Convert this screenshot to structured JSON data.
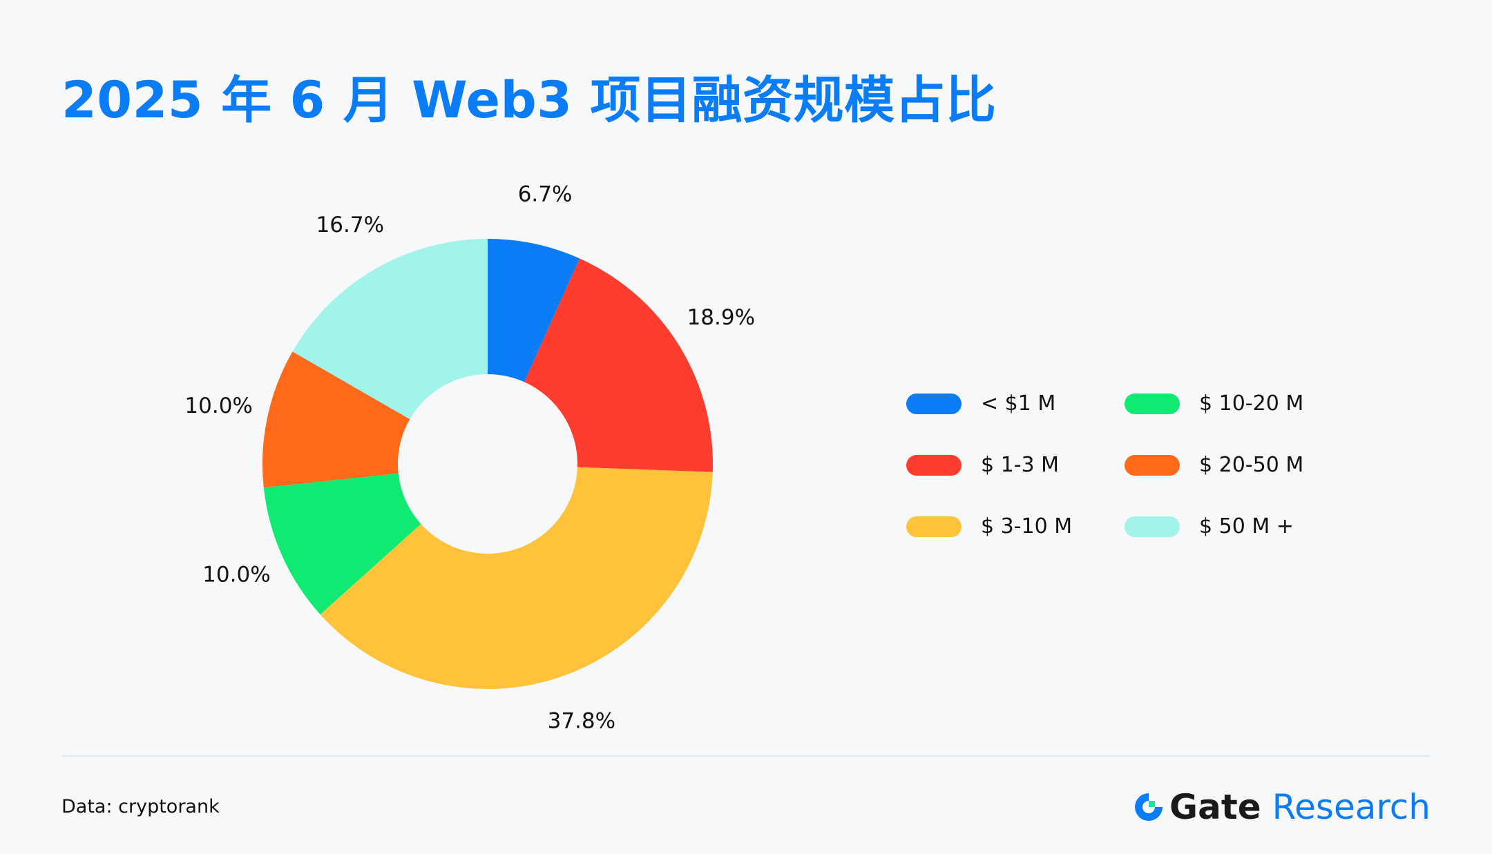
{
  "title": "2025 年 6 月 Web3 项目融资规模占比",
  "chart_data": {
    "type": "pie",
    "variant": "donut",
    "title": "2025 年 6 月 Web3 项目融资规模占比",
    "categories": [
      "< $1 M",
      "$ 1-3 M",
      "$ 3-10 M",
      "$ 10-20 M",
      "$ 20-50 M",
      "$ 50 M +"
    ],
    "values": [
      6.7,
      18.9,
      37.8,
      10.0,
      10.0,
      16.7
    ],
    "value_labels": [
      "6.7%",
      "18.9%",
      "37.8%",
      "10.0%",
      "10.0%",
      "16.7%"
    ],
    "colors": [
      "#0a7cf5",
      "#ff3d2e",
      "#fec33a",
      "#11ea72",
      "#ff6a1a",
      "#a1f4ea"
    ],
    "legend_position": "right",
    "start_angle": "top, clockwise"
  },
  "legend": {
    "items": [
      {
        "label": "< $1 M",
        "color": "#0a7cf5"
      },
      {
        "label": "$ 10-20 M",
        "color": "#11ea72"
      },
      {
        "label": "$ 1-3 M",
        "color": "#ff3d2e"
      },
      {
        "label": "$ 20-50 M",
        "color": "#ff6a1a"
      },
      {
        "label": "$ 3-10 M",
        "color": "#fec33a"
      },
      {
        "label": "$ 50 M +",
        "color": "#a1f4ea"
      }
    ]
  },
  "footer": {
    "source": "Data: cryptorank",
    "brand_name": "Gate",
    "brand_suffix": "Research",
    "brand_color": "#0a7cf5",
    "logo_icon": "gate-logo-icon"
  }
}
